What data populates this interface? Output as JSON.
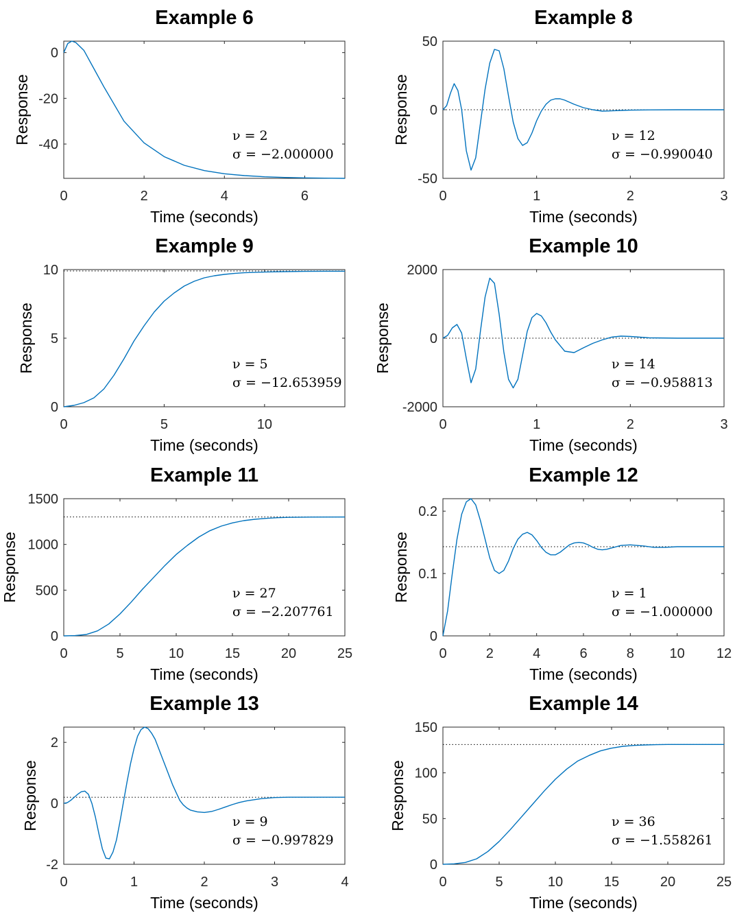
{
  "chart_data": [
    {
      "type": "line",
      "title": "Example 6",
      "xlabel": "Time (seconds)",
      "ylabel": "Response",
      "xlim": [
        0,
        7
      ],
      "ylim": [
        -55,
        5
      ],
      "xticks": [
        0,
        2,
        4,
        6
      ],
      "yticks": [
        0,
        -20,
        -40
      ],
      "xtick_labels": [
        "0",
        "2",
        "4",
        "6"
      ],
      "ytick_labels": [
        "0",
        "-20",
        "-40"
      ],
      "reference_line": null,
      "annotation": [
        "ν = 2",
        "σ = −2.000000"
      ],
      "series": [
        {
          "color": "#0072BD",
          "x": [
            0,
            0.1,
            0.2,
            0.3,
            0.5,
            0.75,
            1.0,
            1.5,
            2.0,
            2.5,
            3.0,
            3.5,
            4.0,
            4.5,
            5.0,
            5.5,
            6.0,
            6.5,
            7.0
          ],
          "y": [
            0,
            4.0,
            5.0,
            4.4,
            1.0,
            -7,
            -15,
            -30,
            -39.5,
            -45.5,
            -49.3,
            -51.6,
            -53.0,
            -53.8,
            -54.3,
            -54.6,
            -54.8,
            -54.9,
            -55.0
          ]
        }
      ]
    },
    {
      "type": "line",
      "title": "Example 8",
      "xlabel": "Time (seconds)",
      "ylabel": "Response",
      "xlim": [
        0,
        3
      ],
      "ylim": [
        -50,
        50
      ],
      "xticks": [
        0,
        1,
        2,
        3
      ],
      "yticks": [
        50,
        0,
        -50
      ],
      "xtick_labels": [
        "0",
        "1",
        "2",
        "3"
      ],
      "ytick_labels": [
        "50",
        "0",
        "-50"
      ],
      "reference_line": 0,
      "annotation": [
        "ν = 12",
        "σ = −0.990040"
      ],
      "series": [
        {
          "color": "#0072BD",
          "x": [
            0,
            0.04,
            0.08,
            0.12,
            0.16,
            0.2,
            0.25,
            0.3,
            0.35,
            0.4,
            0.45,
            0.5,
            0.55,
            0.6,
            0.65,
            0.7,
            0.75,
            0.8,
            0.85,
            0.9,
            0.95,
            1.0,
            1.05,
            1.1,
            1.15,
            1.2,
            1.25,
            1.3,
            1.35,
            1.4,
            1.5,
            1.6,
            1.7,
            1.8,
            1.9,
            2.0,
            2.2,
            2.5,
            3.0
          ],
          "y": [
            0,
            3,
            12,
            19,
            14,
            0,
            -30,
            -44,
            -35,
            -10,
            15,
            34,
            44,
            43,
            30,
            10,
            -9,
            -21,
            -26,
            -24,
            -17,
            -8,
            -1,
            4,
            7,
            8,
            8,
            7,
            5.5,
            4,
            1.5,
            0,
            -1,
            -0.8,
            -0.5,
            -0.3,
            -0.1,
            0,
            0
          ]
        }
      ]
    },
    {
      "type": "line",
      "title": "Example 9",
      "xlabel": "Time (seconds)",
      "ylabel": "Response",
      "xlim": [
        0,
        14
      ],
      "ylim": [
        0,
        10
      ],
      "xticks": [
        0,
        5,
        10
      ],
      "yticks": [
        10,
        5,
        0
      ],
      "xtick_labels": [
        "0",
        "5",
        "10"
      ],
      "ytick_labels": [
        "10",
        "5",
        "0"
      ],
      "reference_line": 9.9,
      "annotation": [
        "ν = 5",
        "σ = −12.653959"
      ],
      "series": [
        {
          "color": "#0072BD",
          "x": [
            0,
            0.5,
            1.0,
            1.5,
            2.0,
            2.5,
            3.0,
            3.5,
            4.0,
            4.5,
            5.0,
            5.5,
            6.0,
            6.5,
            7.0,
            7.5,
            8.0,
            8.5,
            9.0,
            10.0,
            11.0,
            12.0,
            13.0,
            14.0
          ],
          "y": [
            0,
            0.1,
            0.3,
            0.65,
            1.3,
            2.3,
            3.5,
            4.8,
            5.9,
            6.9,
            7.7,
            8.3,
            8.8,
            9.15,
            9.4,
            9.55,
            9.65,
            9.72,
            9.77,
            9.82,
            9.85,
            9.87,
            9.88,
            9.88
          ]
        }
      ]
    },
    {
      "type": "line",
      "title": "Example 10",
      "xlabel": "Time (seconds)",
      "ylabel": "Response",
      "xlim": [
        0,
        3
      ],
      "ylim": [
        -2000,
        2000
      ],
      "xticks": [
        0,
        1,
        2,
        3
      ],
      "yticks": [
        2000,
        0,
        -2000
      ],
      "xtick_labels": [
        "0",
        "1",
        "2",
        "3"
      ],
      "ytick_labels": [
        "2000",
        "0",
        "-2000"
      ],
      "reference_line": 0,
      "annotation": [
        "ν = 14",
        "σ = −0.958813"
      ],
      "series": [
        {
          "color": "#0072BD",
          "x": [
            0,
            0.05,
            0.1,
            0.15,
            0.2,
            0.25,
            0.3,
            0.35,
            0.4,
            0.45,
            0.5,
            0.55,
            0.6,
            0.65,
            0.7,
            0.75,
            0.8,
            0.85,
            0.9,
            0.95,
            1.0,
            1.05,
            1.1,
            1.15,
            1.2,
            1.3,
            1.4,
            1.5,
            1.6,
            1.7,
            1.8,
            1.9,
            2.0,
            2.2,
            2.5,
            3.0
          ],
          "y": [
            0,
            80,
            300,
            400,
            150,
            -600,
            -1300,
            -900,
            200,
            1200,
            1750,
            1600,
            700,
            -400,
            -1200,
            -1450,
            -1200,
            -500,
            200,
            600,
            720,
            650,
            450,
            180,
            -50,
            -380,
            -420,
            -280,
            -150,
            -50,
            30,
            60,
            50,
            10,
            0,
            0
          ]
        }
      ]
    },
    {
      "type": "line",
      "title": "Example 11",
      "xlabel": "Time (seconds)",
      "ylabel": "Response",
      "xlim": [
        0,
        25
      ],
      "ylim": [
        0,
        1500
      ],
      "xticks": [
        0,
        5,
        10,
        15,
        20,
        25
      ],
      "yticks": [
        1500,
        1000,
        500,
        0
      ],
      "xtick_labels": [
        "0",
        "5",
        "10",
        "15",
        "20",
        "25"
      ],
      "ytick_labels": [
        "1500",
        "1000",
        "500",
        "0"
      ],
      "reference_line": 1300,
      "annotation": [
        "ν = 27",
        "σ = −2.207761"
      ],
      "series": [
        {
          "color": "#0072BD",
          "x": [
            0,
            1,
            2,
            3,
            4,
            5,
            6,
            7,
            8,
            9,
            10,
            11,
            12,
            13,
            14,
            15,
            16,
            17,
            18,
            19,
            20,
            22,
            25
          ],
          "y": [
            0,
            3,
            15,
            55,
            130,
            240,
            370,
            510,
            640,
            770,
            890,
            990,
            1080,
            1150,
            1200,
            1235,
            1260,
            1275,
            1285,
            1292,
            1296,
            1299,
            1300
          ]
        }
      ]
    },
    {
      "type": "line",
      "title": "Example 12",
      "xlabel": "Time (seconds)",
      "ylabel": "Response",
      "xlim": [
        0,
        12
      ],
      "ylim": [
        0,
        0.22
      ],
      "xticks": [
        0,
        2,
        4,
        6,
        8,
        10,
        12
      ],
      "yticks": [
        0.2,
        0.1,
        0
      ],
      "xtick_labels": [
        "0",
        "2",
        "4",
        "6",
        "8",
        "10",
        "12"
      ],
      "ytick_labels": [
        "0.2",
        "0.1",
        "0"
      ],
      "reference_line": 0.143,
      "annotation": [
        "ν = 1",
        "σ = −1.000000"
      ],
      "series": [
        {
          "color": "#0072BD",
          "x": [
            0,
            0.2,
            0.4,
            0.6,
            0.8,
            1.0,
            1.2,
            1.4,
            1.6,
            1.8,
            2.0,
            2.2,
            2.4,
            2.6,
            2.8,
            3.0,
            3.2,
            3.4,
            3.6,
            3.8,
            4.0,
            4.2,
            4.4,
            4.6,
            4.8,
            5.0,
            5.2,
            5.4,
            5.6,
            5.8,
            6.0,
            6.2,
            6.4,
            6.6,
            6.8,
            7.0,
            7.3,
            7.6,
            8.0,
            8.3,
            8.6,
            9.0,
            9.5,
            10.0,
            11.0,
            12.0
          ],
          "y": [
            0,
            0.04,
            0.1,
            0.155,
            0.195,
            0.215,
            0.22,
            0.21,
            0.185,
            0.155,
            0.125,
            0.105,
            0.1,
            0.105,
            0.12,
            0.14,
            0.155,
            0.163,
            0.166,
            0.162,
            0.153,
            0.142,
            0.134,
            0.13,
            0.13,
            0.134,
            0.14,
            0.146,
            0.149,
            0.15,
            0.149,
            0.146,
            0.142,
            0.139,
            0.138,
            0.139,
            0.142,
            0.145,
            0.146,
            0.145,
            0.144,
            0.142,
            0.142,
            0.143,
            0.143,
            0.143
          ]
        }
      ]
    },
    {
      "type": "line",
      "title": "Example 13",
      "xlabel": "Time (seconds)",
      "ylabel": "Response",
      "xlim": [
        0,
        4
      ],
      "ylim": [
        -2,
        2.5
      ],
      "xticks": [
        0,
        1,
        2,
        3,
        4
      ],
      "yticks": [
        2,
        0,
        -2
      ],
      "xtick_labels": [
        "0",
        "1",
        "2",
        "3",
        "4"
      ],
      "ytick_labels": [
        "2",
        "0",
        "-2"
      ],
      "reference_line": 0.2,
      "annotation": [
        "ν = 9",
        "σ = −0.997829"
      ],
      "series": [
        {
          "color": "#0072BD",
          "x": [
            0,
            0.05,
            0.1,
            0.15,
            0.2,
            0.25,
            0.3,
            0.35,
            0.4,
            0.45,
            0.5,
            0.55,
            0.6,
            0.65,
            0.7,
            0.75,
            0.8,
            0.85,
            0.9,
            0.95,
            1.0,
            1.05,
            1.1,
            1.15,
            1.2,
            1.25,
            1.3,
            1.35,
            1.4,
            1.45,
            1.5,
            1.55,
            1.6,
            1.65,
            1.7,
            1.75,
            1.8,
            1.9,
            2.0,
            2.1,
            2.2,
            2.3,
            2.4,
            2.5,
            2.6,
            2.8,
            3.0,
            3.2,
            3.5,
            4.0
          ],
          "y": [
            0,
            0.02,
            0.1,
            0.2,
            0.3,
            0.38,
            0.4,
            0.3,
            0.0,
            -0.45,
            -1.0,
            -1.5,
            -1.8,
            -1.82,
            -1.6,
            -1.2,
            -0.6,
            0.05,
            0.7,
            1.3,
            1.8,
            2.2,
            2.42,
            2.5,
            2.45,
            2.3,
            2.1,
            1.8,
            1.5,
            1.2,
            0.9,
            0.6,
            0.35,
            0.1,
            -0.05,
            -0.15,
            -0.22,
            -0.28,
            -0.3,
            -0.27,
            -0.2,
            -0.12,
            -0.04,
            0.03,
            0.08,
            0.15,
            0.19,
            0.2,
            0.2,
            0.2
          ]
        }
      ]
    },
    {
      "type": "line",
      "title": "Example 14",
      "xlabel": "Time (seconds)",
      "ylabel": "Response",
      "xlim": [
        0,
        25
      ],
      "ylim": [
        0,
        150
      ],
      "xticks": [
        0,
        5,
        10,
        15,
        20,
        25
      ],
      "yticks": [
        150,
        100,
        50,
        0
      ],
      "xtick_labels": [
        "0",
        "5",
        "10",
        "15",
        "20",
        "25"
      ],
      "ytick_labels": [
        "150",
        "100",
        "50",
        "0"
      ],
      "reference_line": 131,
      "annotation": [
        "ν = 36",
        "σ = −1.558261"
      ],
      "series": [
        {
          "color": "#0072BD",
          "x": [
            0,
            1,
            2,
            3,
            4,
            5,
            6,
            7,
            8,
            9,
            10,
            11,
            12,
            13,
            14,
            15,
            16,
            17,
            18,
            19,
            20,
            22,
            25
          ],
          "y": [
            0,
            0.5,
            2,
            6,
            14,
            25,
            38,
            52,
            66,
            80,
            93,
            104,
            113,
            119,
            124,
            127,
            129,
            130,
            130.5,
            130.8,
            131,
            131,
            131
          ]
        }
      ]
    }
  ]
}
